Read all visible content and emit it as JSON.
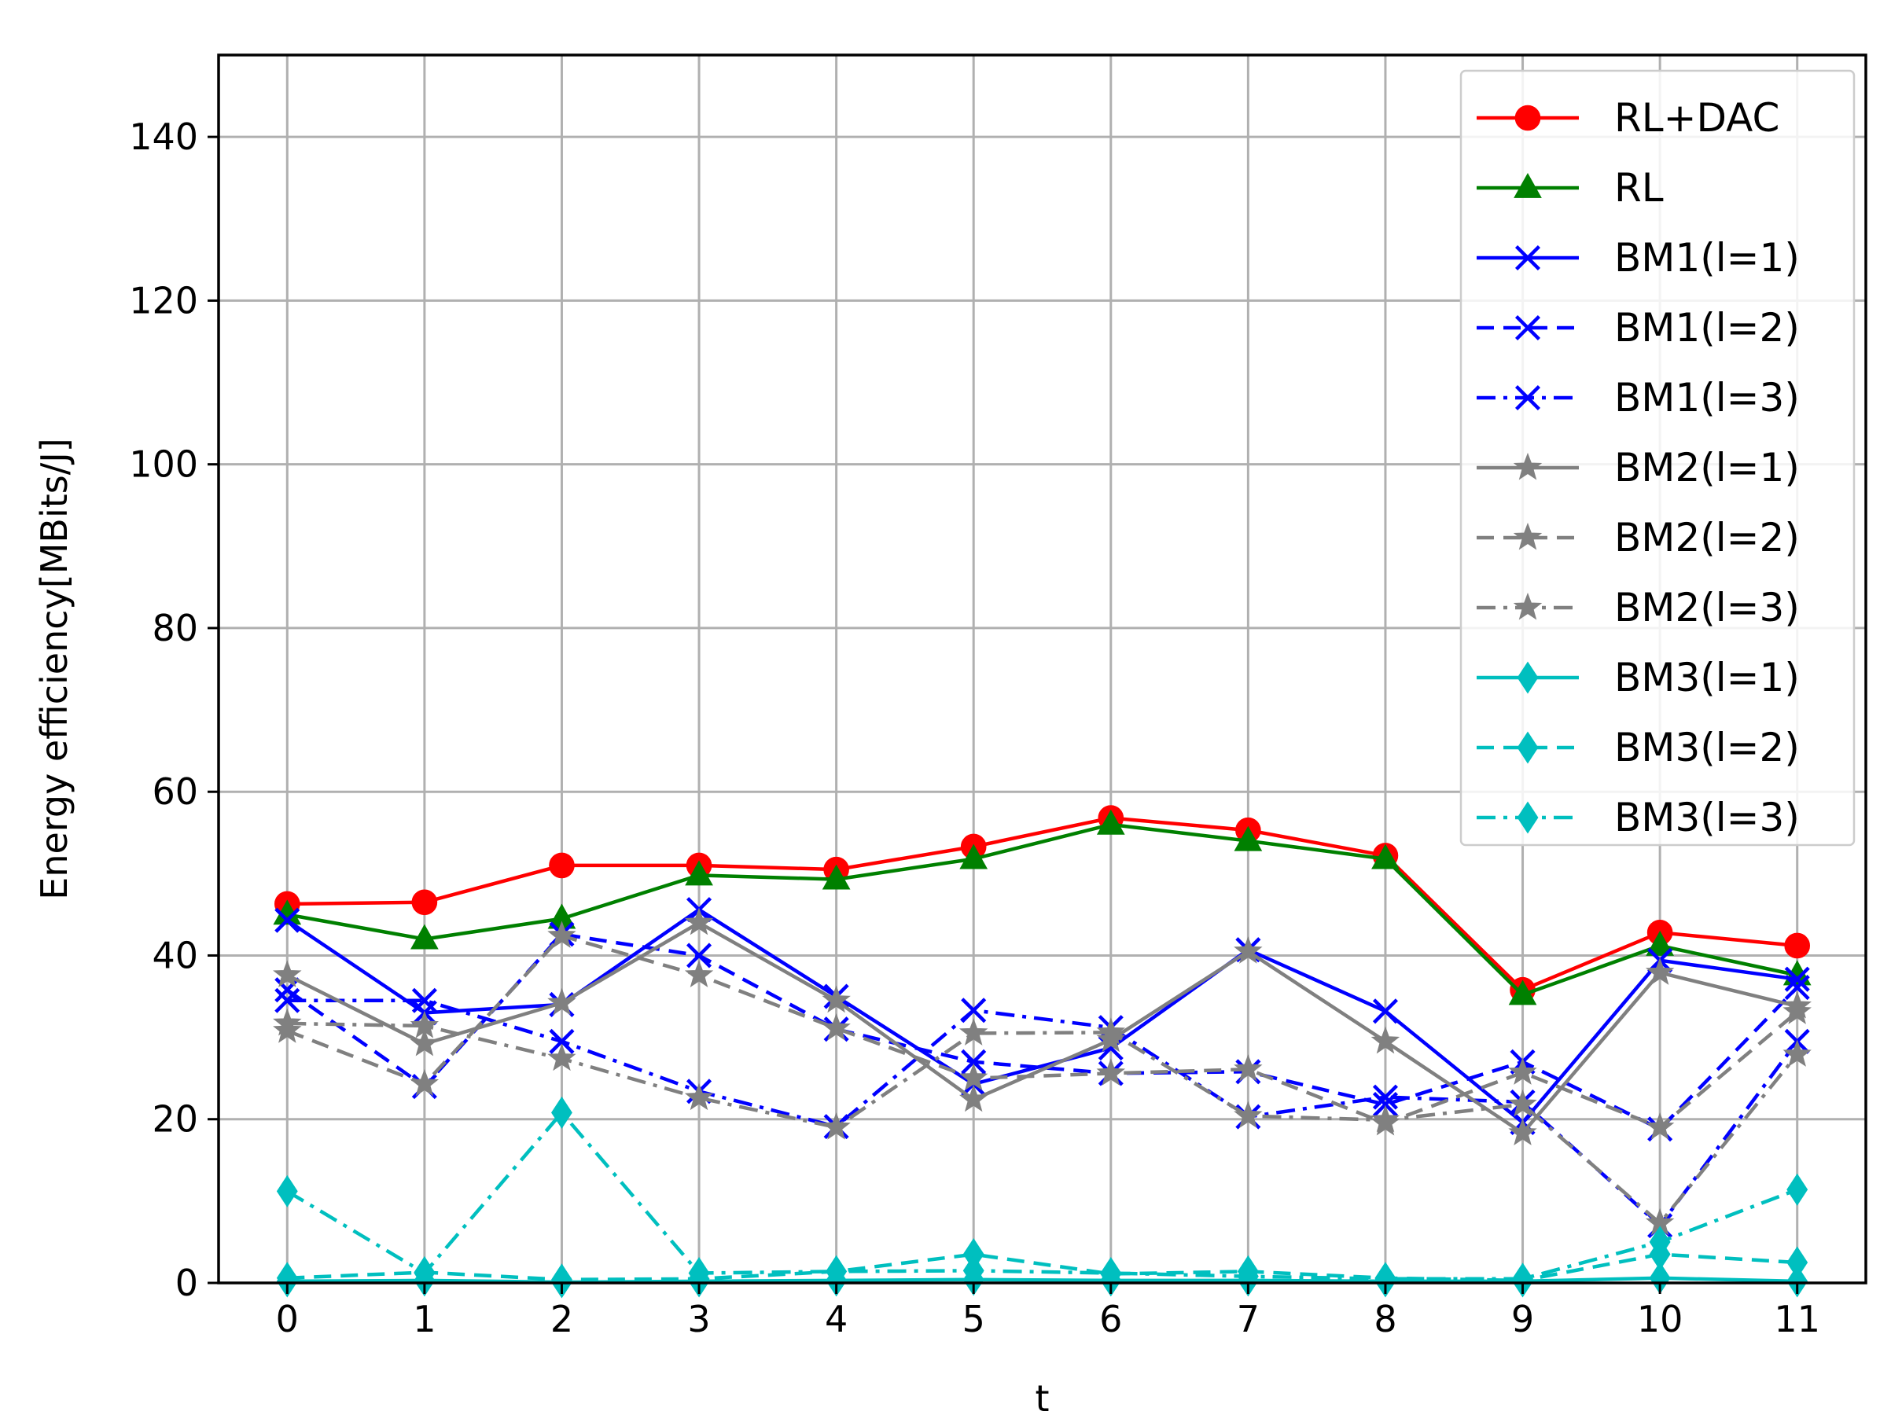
{
  "chart_data": {
    "type": "line",
    "title": "",
    "xlabel": "t",
    "ylabel": "Energy efficiency[MBits/J]",
    "xlim": [
      -0.5,
      11.5
    ],
    "ylim": [
      0,
      150
    ],
    "x": [
      0,
      1,
      2,
      3,
      4,
      5,
      6,
      7,
      8,
      9,
      10,
      11
    ],
    "x_ticks": [
      "0",
      "1",
      "2",
      "3",
      "4",
      "5",
      "6",
      "7",
      "8",
      "9",
      "10",
      "11"
    ],
    "y_ticks": [
      0,
      20,
      40,
      60,
      80,
      100,
      120,
      140
    ],
    "grid": true,
    "legend_position": "top-right",
    "series": [
      {
        "name": "RL+DAC",
        "color": "#ff0000",
        "marker": "circle",
        "linestyle": "solid",
        "values": [
          46.3,
          46.5,
          51.0,
          51.0,
          50.5,
          53.3,
          56.8,
          55.3,
          52.2,
          35.8,
          42.8,
          41.2
        ]
      },
      {
        "name": "RL",
        "color": "#008000",
        "marker": "triangle",
        "linestyle": "solid",
        "values": [
          45.0,
          42.0,
          44.5,
          49.8,
          49.3,
          51.8,
          56.0,
          54.0,
          51.8,
          35.2,
          41.2,
          37.6
        ]
      },
      {
        "name": "BM1(l=1)",
        "color": "#0000ff",
        "marker": "x",
        "linestyle": "solid",
        "values": [
          44.3,
          33.0,
          34.0,
          45.6,
          35.0,
          24.3,
          28.7,
          40.7,
          33.2,
          19.6,
          39.4,
          37.1
        ]
      },
      {
        "name": "BM1(l=2)",
        "color": "#0000ff",
        "marker": "x",
        "linestyle": "dashed",
        "values": [
          35.8,
          24.0,
          42.6,
          40.0,
          31.0,
          27.0,
          25.6,
          25.8,
          21.8,
          27.0,
          18.8,
          36.1
        ]
      },
      {
        "name": "BM1(l=3)",
        "color": "#0000ff",
        "marker": "x",
        "linestyle": "dashdot",
        "values": [
          34.5,
          34.5,
          29.5,
          23.4,
          19.1,
          33.3,
          31.2,
          20.3,
          22.7,
          22.1,
          7.0,
          29.5
        ]
      },
      {
        "name": "BM2(l=1)",
        "color": "#808080",
        "marker": "star",
        "linestyle": "solid",
        "values": [
          37.6,
          29.2,
          34.2,
          44.0,
          34.5,
          22.4,
          29.7,
          40.5,
          29.5,
          18.3,
          37.9,
          33.8
        ]
      },
      {
        "name": "BM2(l=2)",
        "color": "#808080",
        "marker": "star",
        "linestyle": "dashed",
        "values": [
          30.8,
          24.3,
          42.4,
          37.6,
          31.1,
          25.0,
          25.6,
          26.1,
          19.5,
          25.7,
          19.0,
          33.1
        ]
      },
      {
        "name": "BM2(l=3)",
        "color": "#808080",
        "marker": "star",
        "linestyle": "dashdot",
        "values": [
          31.7,
          31.4,
          27.4,
          22.6,
          19.0,
          30.5,
          30.6,
          20.4,
          19.9,
          21.8,
          7.3,
          27.9
        ]
      },
      {
        "name": "BM3(l=1)",
        "color": "#00bfbf",
        "marker": "diamond",
        "linestyle": "solid",
        "values": [
          0.2,
          0.3,
          0.1,
          0.2,
          0.3,
          0.4,
          0.3,
          0.3,
          0.2,
          0.2,
          0.6,
          0.2
        ]
      },
      {
        "name": "BM3(l=2)",
        "color": "#00bfbf",
        "marker": "diamond",
        "linestyle": "dashed",
        "values": [
          0.6,
          1.3,
          0.4,
          0.5,
          1.4,
          3.5,
          1.1,
          1.4,
          0.6,
          0.3,
          3.5,
          2.5
        ]
      },
      {
        "name": "BM3(l=3)",
        "color": "#00bfbf",
        "marker": "diamond",
        "linestyle": "dashdot",
        "values": [
          11.2,
          1.2,
          20.8,
          1.2,
          1.4,
          1.5,
          1.2,
          0.8,
          0.5,
          0.5,
          5.0,
          11.4
        ]
      }
    ]
  }
}
